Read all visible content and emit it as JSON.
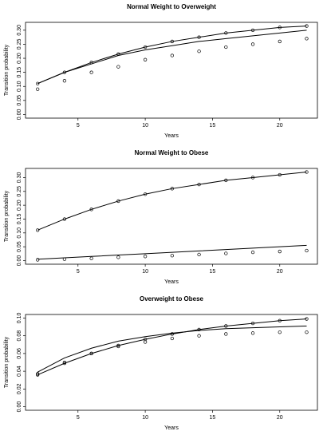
{
  "chart_data": [
    {
      "type": "line",
      "title": "Normal Weight to Overweight",
      "x_label": "Years",
      "y_label": "Transition probability",
      "x": [
        2,
        4,
        6,
        8,
        10,
        12,
        14,
        16,
        18,
        20,
        22
      ],
      "series": [
        {
          "color": "#000000",
          "line": true,
          "markers": true,
          "values": [
            0.11,
            0.15,
            0.185,
            0.215,
            0.24,
            0.26,
            0.275,
            0.29,
            0.3,
            0.31,
            0.315
          ]
        },
        {
          "color": "#000000",
          "line": true,
          "markers": false,
          "values": [
            0.11,
            0.15,
            0.18,
            0.21,
            0.23,
            0.245,
            0.26,
            0.27,
            0.28,
            0.29,
            0.3
          ]
        },
        {
          "color": "#000000",
          "line": false,
          "markers": true,
          "values": [
            0.09,
            0.12,
            0.15,
            0.17,
            0.195,
            0.21,
            0.225,
            0.24,
            0.25,
            0.26,
            0.27
          ]
        }
      ],
      "xlim": [
        1.1,
        22.8
      ],
      "xticks": [
        5,
        10,
        15,
        20
      ],
      "ylim": [
        -0.013,
        0.328
      ],
      "yticks": [
        {
          "value": 0,
          "label": "0.00"
        },
        {
          "value": 0.05,
          "label": "0.05"
        },
        {
          "value": 0.1,
          "label": "0.10"
        },
        {
          "value": 0.15,
          "label": "0.15"
        },
        {
          "value": 0.2,
          "label": "0.20"
        },
        {
          "value": 0.25,
          "label": "0.25"
        },
        {
          "value": 0.3,
          "label": "0.30"
        }
      ]
    },
    {
      "type": "line",
      "title": "Normal Weight to Obese",
      "x_label": "Years",
      "y_label": "Transition probability",
      "x": [
        2,
        4,
        6,
        8,
        10,
        12,
        14,
        16,
        18,
        20,
        22
      ],
      "series": [
        {
          "color": "#000000",
          "line": true,
          "markers": true,
          "values": [
            0.11,
            0.15,
            0.185,
            0.215,
            0.24,
            0.26,
            0.275,
            0.29,
            0.3,
            0.31,
            0.32
          ]
        },
        {
          "color": "#000000",
          "line": true,
          "markers": false,
          "values": [
            0.005,
            0.01,
            0.015,
            0.02,
            0.025,
            0.03,
            0.035,
            0.04,
            0.045,
            0.05,
            0.055
          ]
        },
        {
          "color": "#000000",
          "line": false,
          "markers": true,
          "values": [
            0.003,
            0.005,
            0.008,
            0.012,
            0.015,
            0.018,
            0.022,
            0.026,
            0.03,
            0.033,
            0.036
          ]
        }
      ],
      "xlim": [
        1.1,
        22.8
      ],
      "xticks": [
        5,
        10,
        15,
        20
      ],
      "ylim": [
        -0.013,
        0.333
      ],
      "yticks": [
        {
          "value": 0,
          "label": "0.00"
        },
        {
          "value": 0.05,
          "label": "0.05"
        },
        {
          "value": 0.1,
          "label": "0.10"
        },
        {
          "value": 0.15,
          "label": "0.15"
        },
        {
          "value": 0.2,
          "label": "0.20"
        },
        {
          "value": 0.25,
          "label": "0.25"
        },
        {
          "value": 0.3,
          "label": "0.30"
        }
      ]
    },
    {
      "type": "line",
      "title": "Overweight to Obese",
      "x_label": "Years",
      "y_label": "Transition probability",
      "x": [
        2,
        4,
        6,
        8,
        10,
        12,
        14,
        16,
        18,
        20,
        22
      ],
      "series": [
        {
          "color": "#000000",
          "line": true,
          "markers": true,
          "values": [
            0.036,
            0.049,
            0.06,
            0.069,
            0.076,
            0.082,
            0.087,
            0.091,
            0.094,
            0.097,
            0.099
          ]
        },
        {
          "color": "#000000",
          "line": true,
          "markers": false,
          "values": [
            0.039,
            0.055,
            0.066,
            0.074,
            0.079,
            0.083,
            0.086,
            0.088,
            0.089,
            0.09,
            0.091
          ]
        },
        {
          "color": "#000000",
          "line": false,
          "markers": true,
          "values": [
            0.037,
            0.05,
            0.06,
            0.068,
            0.073,
            0.077,
            0.08,
            0.082,
            0.083,
            0.084,
            0.084
          ]
        }
      ],
      "xlim": [
        1.1,
        22.8
      ],
      "xticks": [
        5,
        10,
        15,
        20
      ],
      "ylim": [
        -0.004,
        0.104
      ],
      "yticks": [
        {
          "value": 0,
          "label": "0.00"
        },
        {
          "value": 0.02,
          "label": "0.02"
        },
        {
          "value": 0.04,
          "label": "0.04"
        },
        {
          "value": 0.06,
          "label": "0.06"
        },
        {
          "value": 0.08,
          "label": "0.08"
        },
        {
          "value": 0.1,
          "label": "0.10"
        }
      ]
    }
  ]
}
